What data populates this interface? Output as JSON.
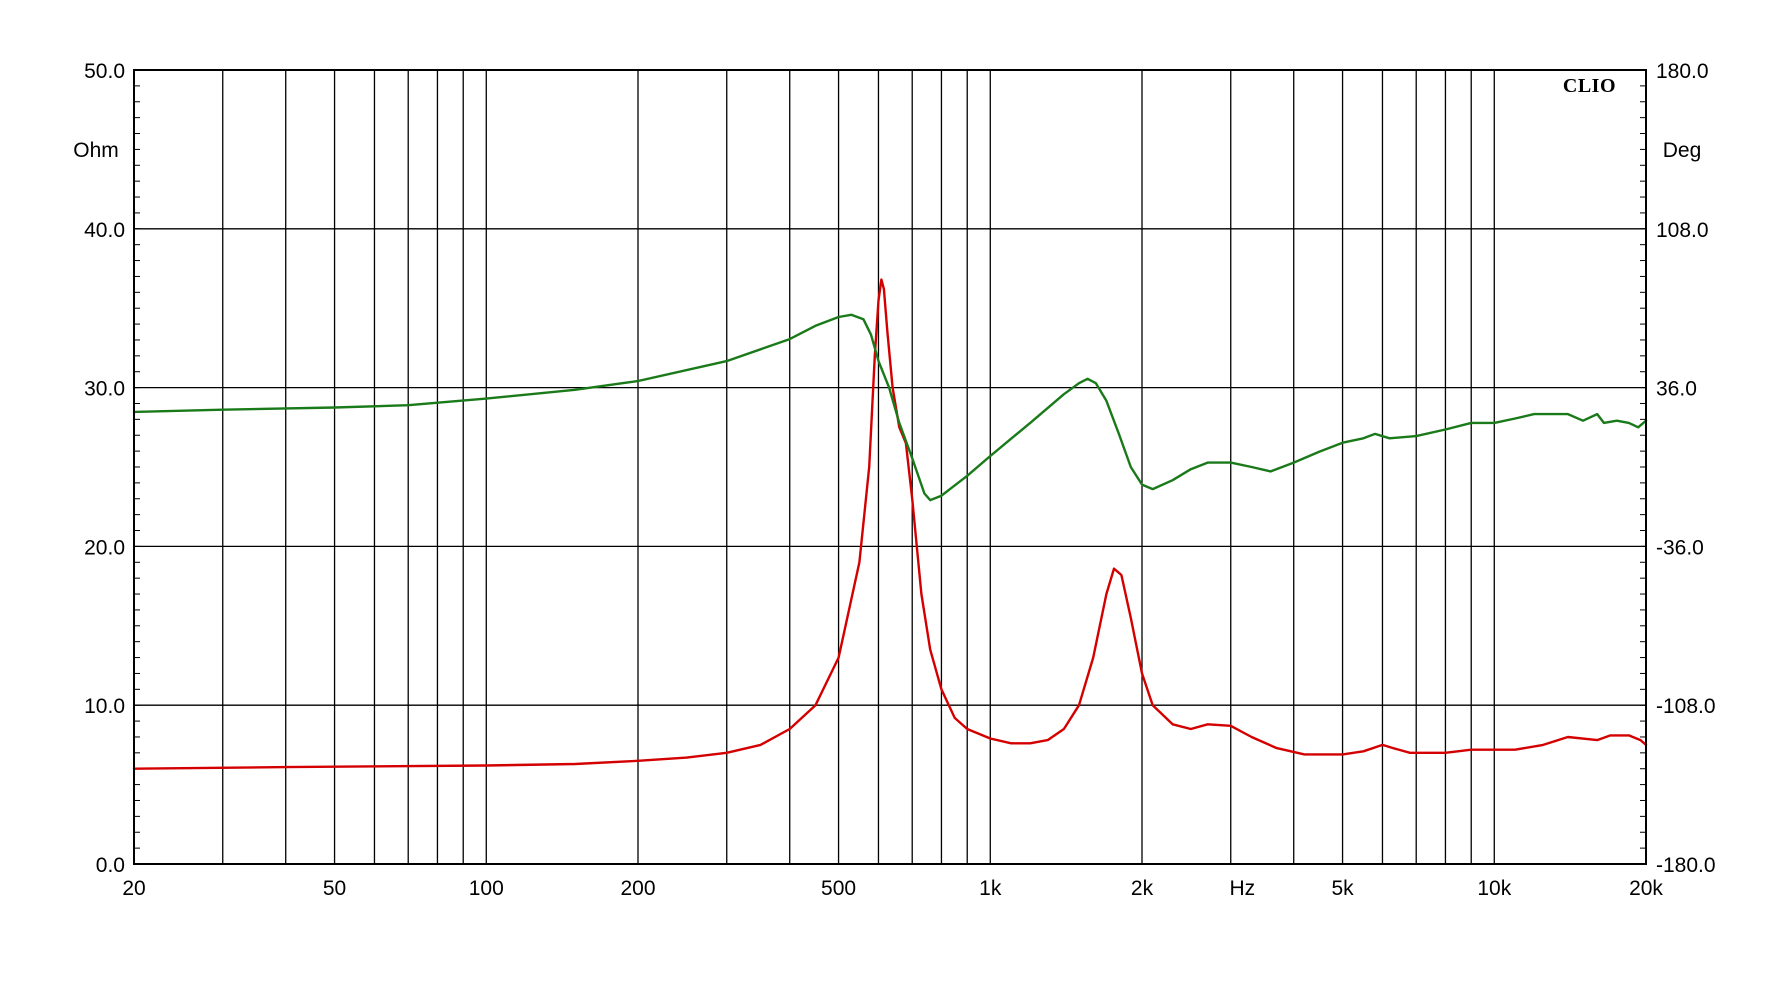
{
  "chart_data": {
    "type": "line",
    "brand": "CLIO",
    "xlabel": "Hz",
    "ylabel_left": "Ohm",
    "ylabel_right": "Deg",
    "x_scale": "log",
    "xlim": [
      20,
      20000
    ],
    "ylim_left": [
      0,
      50
    ],
    "ylim_right": [
      -180,
      180
    ],
    "grid": true,
    "x_ticks": [
      {
        "value": 20,
        "label": "20"
      },
      {
        "value": 50,
        "label": "50"
      },
      {
        "value": 100,
        "label": "100"
      },
      {
        "value": 200,
        "label": "200"
      },
      {
        "value": 500,
        "label": "500"
      },
      {
        "value": 1000,
        "label": "1k"
      },
      {
        "value": 2000,
        "label": "2k"
      },
      {
        "value": 5000,
        "label": "5k"
      },
      {
        "value": 10000,
        "label": "10k"
      },
      {
        "value": 20000,
        "label": "20k"
      }
    ],
    "x_grid": [
      20,
      30,
      40,
      50,
      60,
      70,
      80,
      90,
      100,
      200,
      300,
      400,
      500,
      600,
      700,
      800,
      900,
      1000,
      2000,
      3000,
      4000,
      5000,
      6000,
      7000,
      8000,
      9000,
      10000,
      20000
    ],
    "y_ticks_left": [
      {
        "value": 0,
        "label": "0.0"
      },
      {
        "value": 10,
        "label": "10.0"
      },
      {
        "value": 20,
        "label": "20.0"
      },
      {
        "value": 30,
        "label": "30.0"
      },
      {
        "value": 40,
        "label": "40.0"
      },
      {
        "value": 50,
        "label": "50.0"
      }
    ],
    "y_ticks_right": [
      {
        "value": -180,
        "label": "-180.0"
      },
      {
        "value": -108,
        "label": "-108.0"
      },
      {
        "value": -36,
        "label": "-36.0"
      },
      {
        "value": 36,
        "label": "36.0"
      },
      {
        "value": 108,
        "label": "108.0"
      },
      {
        "value": 180,
        "label": "180.0"
      }
    ],
    "series": [
      {
        "axis": "left",
        "color": "#d40000",
        "points": [
          [
            20,
            6.0
          ],
          [
            40,
            6.1
          ],
          [
            100,
            6.2
          ],
          [
            150,
            6.3
          ],
          [
            200,
            6.5
          ],
          [
            250,
            6.7
          ],
          [
            300,
            7.0
          ],
          [
            350,
            7.5
          ],
          [
            400,
            8.5
          ],
          [
            450,
            10.0
          ],
          [
            500,
            13.0
          ],
          [
            550,
            19.0
          ],
          [
            575,
            25.0
          ],
          [
            590,
            32.0
          ],
          [
            600,
            35.5
          ],
          [
            608,
            36.8
          ],
          [
            615,
            36.2
          ],
          [
            625,
            33.5
          ],
          [
            640,
            30.0
          ],
          [
            660,
            27.5
          ],
          [
            680,
            26.5
          ],
          [
            700,
            23.0
          ],
          [
            730,
            17.0
          ],
          [
            760,
            13.5
          ],
          [
            800,
            11.0
          ],
          [
            850,
            9.2
          ],
          [
            900,
            8.5
          ],
          [
            1000,
            7.9
          ],
          [
            1100,
            7.6
          ],
          [
            1200,
            7.6
          ],
          [
            1300,
            7.8
          ],
          [
            1400,
            8.5
          ],
          [
            1500,
            10.0
          ],
          [
            1600,
            13.0
          ],
          [
            1700,
            17.0
          ],
          [
            1760,
            18.6
          ],
          [
            1820,
            18.2
          ],
          [
            1900,
            15.5
          ],
          [
            2000,
            12.0
          ],
          [
            2100,
            10.0
          ],
          [
            2300,
            8.8
          ],
          [
            2500,
            8.5
          ],
          [
            2700,
            8.8
          ],
          [
            3000,
            8.7
          ],
          [
            3300,
            8.0
          ],
          [
            3700,
            7.3
          ],
          [
            4200,
            6.9
          ],
          [
            5000,
            6.9
          ],
          [
            5500,
            7.1
          ],
          [
            6000,
            7.5
          ],
          [
            6300,
            7.3
          ],
          [
            6800,
            7.0
          ],
          [
            8000,
            7.0
          ],
          [
            9000,
            7.2
          ],
          [
            10000,
            7.2
          ],
          [
            11000,
            7.2
          ],
          [
            12500,
            7.5
          ],
          [
            14000,
            8.0
          ],
          [
            16000,
            7.8
          ],
          [
            17000,
            8.1
          ],
          [
            18500,
            8.1
          ],
          [
            19500,
            7.8
          ],
          [
            20000,
            7.5
          ]
        ]
      },
      {
        "axis": "right",
        "color": "#1a7a1a",
        "points": [
          [
            20,
            25
          ],
          [
            30,
            26
          ],
          [
            50,
            27
          ],
          [
            70,
            28
          ],
          [
            100,
            31
          ],
          [
            150,
            35
          ],
          [
            200,
            39
          ],
          [
            300,
            48
          ],
          [
            400,
            58
          ],
          [
            450,
            64
          ],
          [
            500,
            68
          ],
          [
            530,
            69
          ],
          [
            560,
            67
          ],
          [
            580,
            60
          ],
          [
            600,
            48
          ],
          [
            630,
            36
          ],
          [
            660,
            20
          ],
          [
            700,
            4
          ],
          [
            740,
            -12
          ],
          [
            760,
            -15
          ],
          [
            800,
            -13
          ],
          [
            900,
            -4
          ],
          [
            1000,
            5
          ],
          [
            1200,
            20
          ],
          [
            1400,
            33
          ],
          [
            1500,
            38
          ],
          [
            1560,
            40
          ],
          [
            1620,
            38
          ],
          [
            1700,
            30
          ],
          [
            1800,
            15
          ],
          [
            1900,
            0
          ],
          [
            2000,
            -8
          ],
          [
            2100,
            -10
          ],
          [
            2300,
            -6
          ],
          [
            2500,
            -1
          ],
          [
            2700,
            2
          ],
          [
            3000,
            2
          ],
          [
            3300,
            0
          ],
          [
            3600,
            -2
          ],
          [
            4000,
            2
          ],
          [
            4500,
            7
          ],
          [
            5000,
            11
          ],
          [
            5500,
            13
          ],
          [
            5800,
            15
          ],
          [
            6200,
            13
          ],
          [
            7000,
            14
          ],
          [
            8000,
            17
          ],
          [
            9000,
            20
          ],
          [
            10000,
            20
          ],
          [
            11000,
            22
          ],
          [
            12000,
            24
          ],
          [
            14000,
            24
          ],
          [
            15000,
            21
          ],
          [
            16000,
            24
          ],
          [
            16500,
            20
          ],
          [
            17500,
            21
          ],
          [
            18500,
            20
          ],
          [
            19300,
            18
          ],
          [
            20000,
            21
          ]
        ]
      }
    ]
  }
}
